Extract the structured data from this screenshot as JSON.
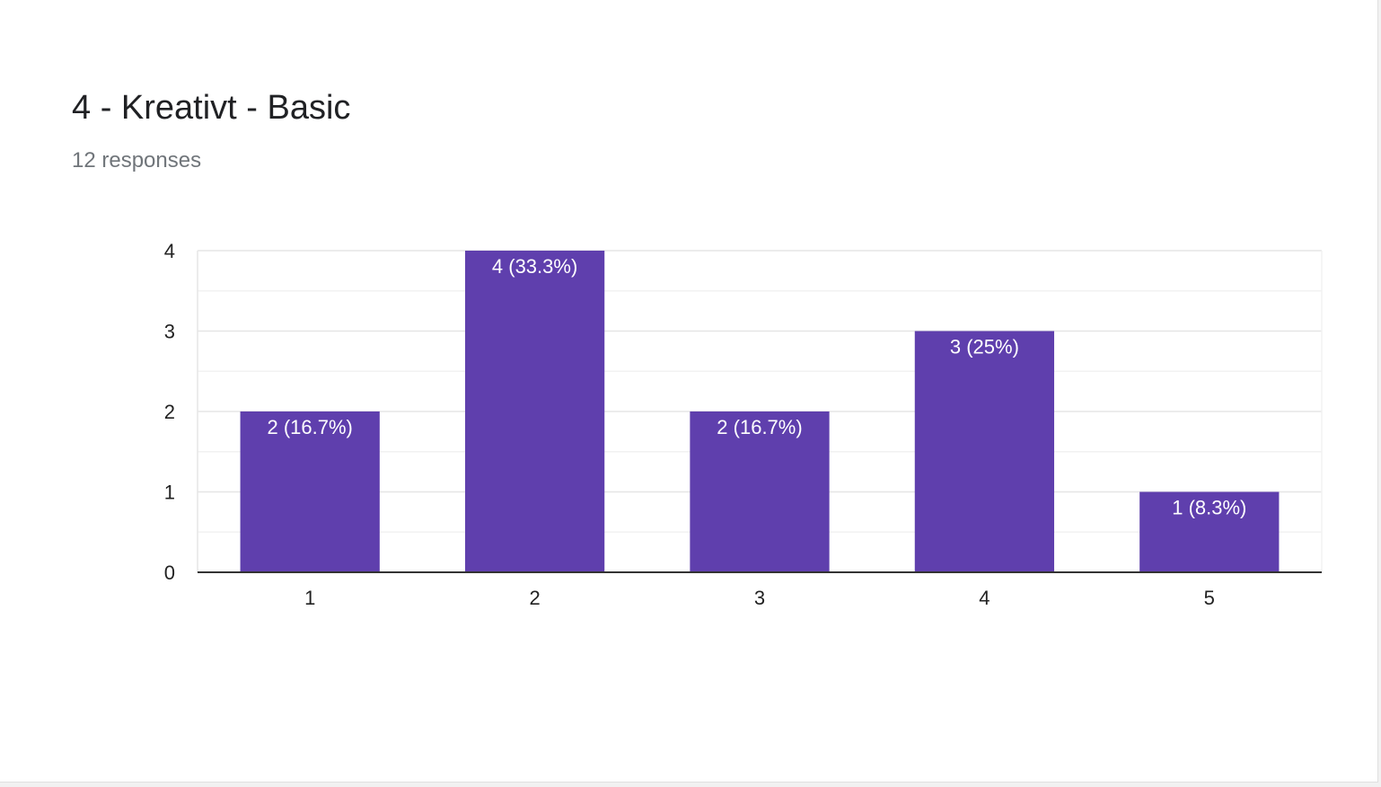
{
  "header": {
    "title": "4 - Kreativt - Basic",
    "subtitle": "12 responses"
  },
  "colors": {
    "bar": "#5f3fad",
    "grid_major": "#e6e6e6",
    "grid_minor": "#f2f2f2",
    "axis": "#333333"
  },
  "chart_data": {
    "type": "bar",
    "categories": [
      "1",
      "2",
      "3",
      "4",
      "5"
    ],
    "values": [
      2,
      4,
      2,
      3,
      1
    ],
    "data_labels": [
      "2 (16.7%)",
      "4 (33.3%)",
      "2 (16.7%)",
      "3 (25%)",
      "1 (8.3%)"
    ],
    "title": "4 - Kreativt - Basic",
    "subtitle": "12 responses",
    "xlabel": "",
    "ylabel": "",
    "ylim": [
      0,
      4
    ],
    "yticks": [
      0,
      1,
      2,
      3,
      4
    ],
    "grid": true,
    "legend": "none"
  }
}
